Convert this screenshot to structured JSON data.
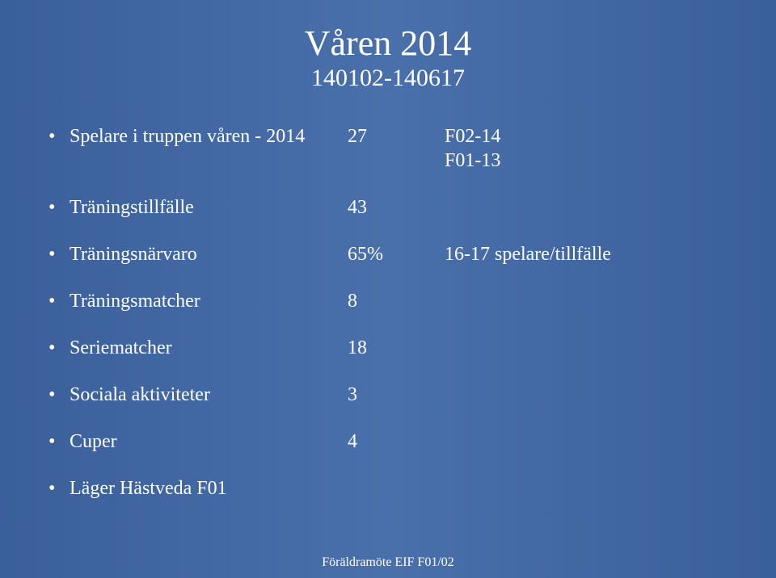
{
  "slide": {
    "background_gradient": [
      "#3a5f9a",
      "#4a70ab",
      "#3a5f9a"
    ],
    "text_color": "#ffffff",
    "font_family": "Palatino Linotype",
    "title": "Våren 2014",
    "title_fontsize": 44,
    "subtitle": "140102-140617",
    "subtitle_fontsize": 30,
    "body_fontsize": 24,
    "rows": [
      {
        "label": "Spelare i truppen våren - 2014",
        "value": "27",
        "note": "F02-14",
        "sub_note": "F01-13"
      },
      {
        "label": "Träningstillfälle",
        "value": "43",
        "note": "",
        "sub_note": ""
      },
      {
        "label": "Träningsnärvaro",
        "value": "65%",
        "note": "16-17 spelare/tillfälle",
        "sub_note": ""
      },
      {
        "label": "Träningsmatcher",
        "value": "8",
        "note": "",
        "sub_note": ""
      },
      {
        "label": "Seriematcher",
        "value": "18",
        "note": "",
        "sub_note": ""
      },
      {
        "label": "Sociala aktiviteter",
        "value": "3",
        "note": "",
        "sub_note": ""
      },
      {
        "label": "Cuper",
        "value": "4",
        "note": "",
        "sub_note": ""
      },
      {
        "label": "Läger Hästveda F01",
        "value": "",
        "note": "",
        "sub_note": ""
      }
    ],
    "footer": "Föräldramöte EIF F01/02",
    "footer_fontsize": 16
  }
}
